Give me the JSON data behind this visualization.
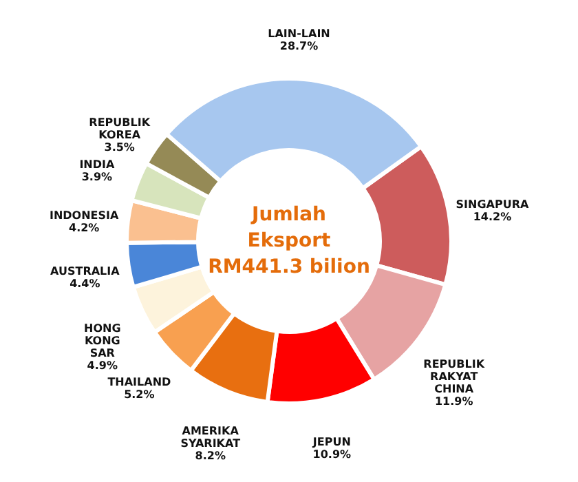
{
  "chart_data": {
    "type": "donut",
    "title": "Jumlah\nEksport\nRM441.3 bilion",
    "categories": [
      "SINGAPURA",
      "REPUBLIK RAKYAT CHINA",
      "JEPUN",
      "AMERIKA SYARIKAT",
      "THAILAND",
      "HONG KONG SAR",
      "AUSTRALIA",
      "INDONESIA",
      "INDIA",
      "REPUBLIK KOREA",
      "LAIN-LAIN"
    ],
    "values": [
      14.2,
      11.9,
      10.9,
      8.2,
      5.2,
      4.9,
      4.4,
      4.2,
      3.9,
      3.5,
      28.7
    ],
    "value_labels": [
      "14.2%",
      "11.9%",
      "10.9%",
      "8.2%",
      "5.2%",
      "4.9%",
      "4.4%",
      "4.2%",
      "3.9%",
      "3.5%",
      "28.7%"
    ],
    "colors": [
      "#cd5c5c",
      "#e6a3a3",
      "#ff0000",
      "#e86f10",
      "#f8a050",
      "#fdf3dc",
      "#4a86d8",
      "#fac090",
      "#d7e4bc",
      "#958a56",
      "#a7c7ef"
    ]
  }
}
